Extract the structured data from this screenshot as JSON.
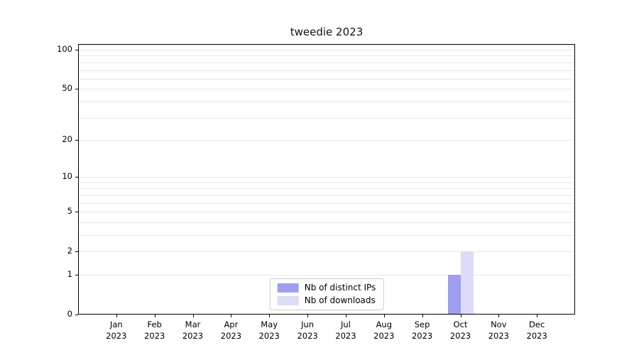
{
  "chart_data": {
    "type": "bar",
    "title": "tweedie 2023",
    "year_label": "2023",
    "categories": [
      "Jan",
      "Feb",
      "Mar",
      "Apr",
      "May",
      "Jun",
      "Jul",
      "Aug",
      "Sep",
      "Oct",
      "Nov",
      "Dec"
    ],
    "series": [
      {
        "name": "Nb of distinct IPs",
        "color": "#9f9ff0",
        "values": [
          0,
          0,
          0,
          0,
          0,
          0,
          0,
          0,
          0,
          1,
          0,
          0
        ]
      },
      {
        "name": "Nb of downloads",
        "color": "#dcdcf8",
        "values": [
          0,
          0,
          0,
          0,
          0,
          0,
          0,
          0,
          0,
          2,
          0,
          0
        ]
      }
    ],
    "y_ticks": [
      0,
      1,
      2,
      5,
      10,
      20,
      50,
      100
    ],
    "gridline_values": [
      1,
      2,
      3,
      4,
      5,
      6,
      7,
      8,
      9,
      10,
      20,
      30,
      40,
      50,
      60,
      70,
      80,
      90,
      100
    ],
    "scale": "log1p",
    "ylim": [
      0,
      110
    ],
    "grid": "horizontal",
    "legend_position": "lower center",
    "colors": {
      "axis": "#000000",
      "gridline": "#e8e8e8",
      "legend_border": "#cccccc"
    }
  }
}
